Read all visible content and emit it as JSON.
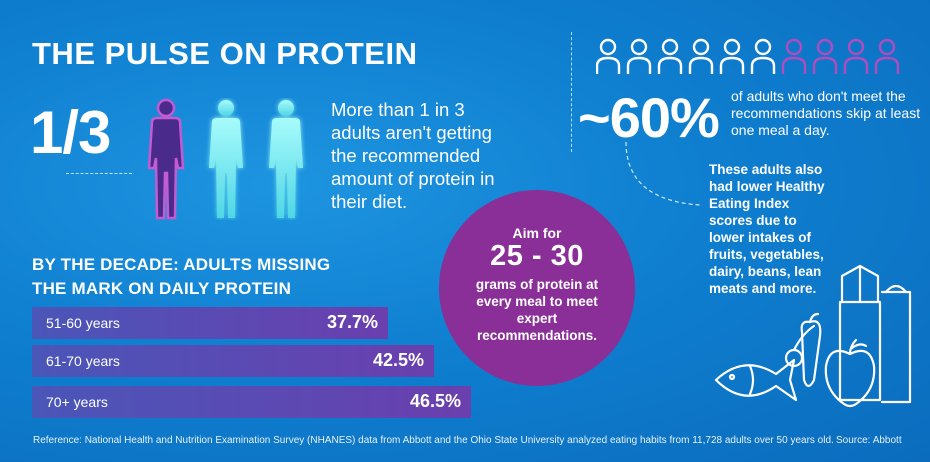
{
  "title": "THE PULSE ON PROTEIN",
  "fraction": "1/3",
  "fraction_description": "More than 1 in 3 adults aren't getting the recommended amount of protein in their diet.",
  "decade_title_line1": "BY THE DECADE: ADULTS MISSING",
  "decade_title_line2": "THE MARK ON DAILY PROTEIN",
  "chart_data": {
    "type": "bar",
    "categories": [
      "51-60 years",
      "61-70 years",
      "70+ years"
    ],
    "values": [
      37.7,
      42.5,
      46.5
    ],
    "labels": [
      "37.7%",
      "42.5%",
      "46.5%"
    ]
  },
  "circle": {
    "line1": "Aim for",
    "amount": "25 - 30",
    "text": "grams of protein at every meal to meet expert recommendations."
  },
  "skip_stat": {
    "percent": "~60%",
    "text": "of adults who don't meet the recommendations skip at least one meal a day."
  },
  "lower_text": "These adults also had lower Healthy Eating Index scores due to lower intakes of fruits, vegetables, dairy, beans, lean meats and more.",
  "reference": "Reference: National Health and Nutrition Examination Survey (NHANES) data from Abbott and the Ohio State University analyzed eating habits from 11,728 adults over 50 years old.",
  "source": "Source: Abbott",
  "colors": {
    "background": "#0f7fd0",
    "purple": "#8a2f98",
    "highlight_person": "#b04cc0",
    "glow_person": "#7ff2f0",
    "bar_start": "#4a56b8",
    "bar_end": "#6a3fae"
  },
  "meal_icons": {
    "total": 10,
    "highlighted": 4
  }
}
